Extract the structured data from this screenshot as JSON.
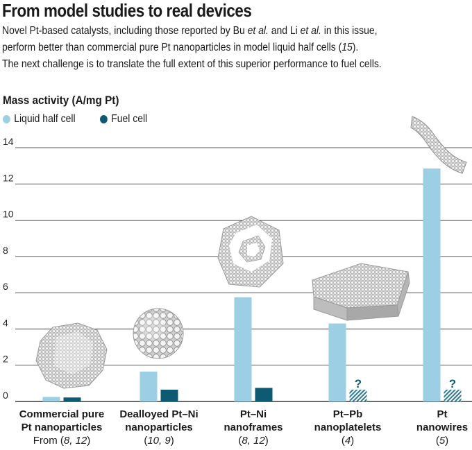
{
  "header": {
    "title": "From model studies to real devices",
    "intro_lines": [
      "Novel Pt-based catalysts, including those reported by Bu et al. and Li et al. in this issue,",
      "perform better than commercial pure Pt nanoparticles in model liquid half cells (15).",
      "The next challenge is to translate the full extent of this superior performance to fuel cells."
    ]
  },
  "colors": {
    "liquid": "#9dcfe4",
    "fuel": "#0e5a72",
    "grid": "#222222",
    "unknown": "#2f7a93"
  },
  "chart_data": {
    "type": "bar",
    "ylabel": "Mass activity (A/mg Pt)",
    "ylim": [
      0,
      14
    ],
    "yticks": [
      0,
      2,
      4,
      6,
      8,
      10,
      12,
      14
    ],
    "grid": true,
    "legend_position": "top-left",
    "categories": [
      {
        "line1": "Commercial pure",
        "line2": "Pt nanoparticles",
        "ref_prefix": "From ",
        "ref": "(8, 12)"
      },
      {
        "line1": "Dealloyed Pt–Ni",
        "line2": "nanoparticles",
        "ref_prefix": "",
        "ref": "(10, 9)"
      },
      {
        "line1": "Pt–Ni",
        "line2": "nanoframes",
        "ref_prefix": "",
        "ref": "(8, 12)"
      },
      {
        "line1": "Pt–Pb",
        "line2": "nanoplatelets",
        "ref_prefix": "",
        "ref": "(4)"
      },
      {
        "line1": "Pt",
        "line2": "nanowires",
        "ref_prefix": "",
        "ref": "(5)"
      }
    ],
    "series": [
      {
        "name": "Liquid half cell",
        "values": [
          0.25,
          1.65,
          5.75,
          4.3,
          12.85
        ]
      },
      {
        "name": "Fuel cell",
        "values": [
          0.22,
          0.65,
          0.75,
          null,
          null
        ]
      }
    ],
    "unknown_marker": "?"
  }
}
